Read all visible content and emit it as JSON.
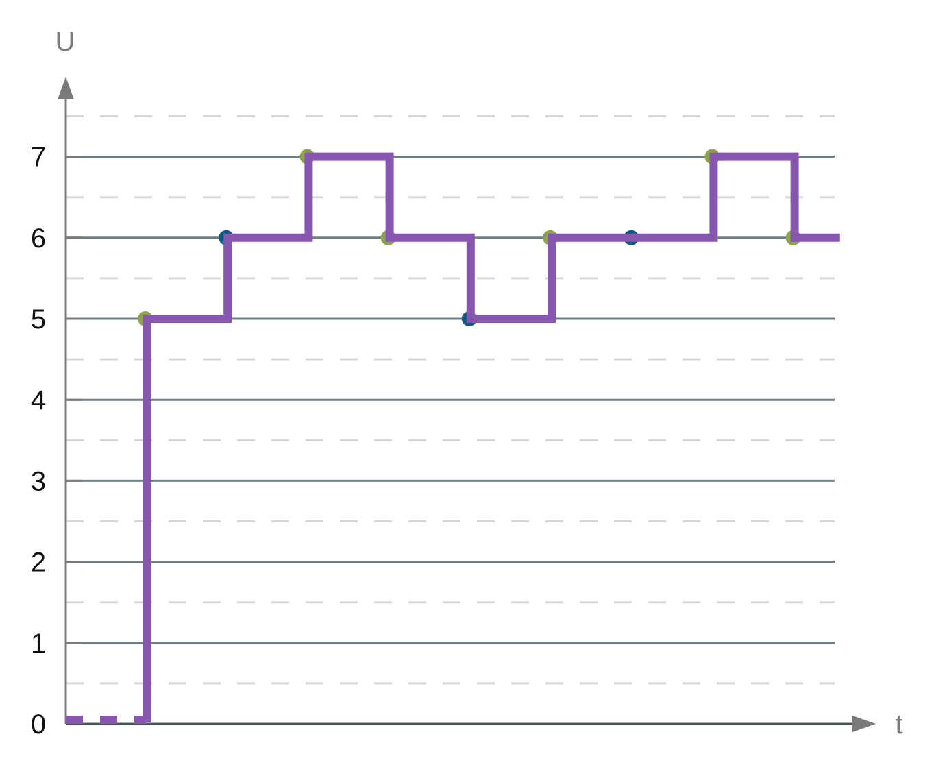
{
  "chart_data": {
    "type": "line",
    "step": true,
    "xlabel": "t",
    "ylabel": "U",
    "ylim": [
      0,
      7.5
    ],
    "yticks": [
      "0",
      "1",
      "2",
      "3",
      "4",
      "5",
      "6",
      "7"
    ],
    "grid": {
      "major": true,
      "minor_dashed": true
    },
    "series": [
      {
        "signal_steps": [
          {
            "t": 0,
            "value": 0
          },
          {
            "t": 1,
            "value": 5
          },
          {
            "t": 2,
            "value": 6
          },
          {
            "t": 3,
            "value": 7
          },
          {
            "t": 4,
            "value": 6
          },
          {
            "t": 5,
            "value": 5
          },
          {
            "t": 6,
            "value": 6
          },
          {
            "t": 7,
            "value": 6
          },
          {
            "t": 8,
            "value": 7
          },
          {
            "t": 9,
            "value": 6
          },
          {
            "t": 9.56,
            "value": 6
          }
        ],
        "initial_segment_style": "dashed",
        "color": "#8757b0"
      }
    ],
    "sample_points": [
      {
        "t": 1,
        "value": 5,
        "color": "#8da44a"
      },
      {
        "t": 2,
        "value": 6,
        "color": "#0e5a80"
      },
      {
        "t": 3,
        "value": 7,
        "color": "#8da44a"
      },
      {
        "t": 4,
        "value": 6,
        "color": "#8da44a"
      },
      {
        "t": 5,
        "value": 5,
        "color": "#0e5a80"
      },
      {
        "t": 6,
        "value": 6,
        "color": "#8da44a"
      },
      {
        "t": 7,
        "value": 6,
        "color": "#0e5a80"
      },
      {
        "t": 8,
        "value": 7,
        "color": "#8da44a"
      },
      {
        "t": 9,
        "value": 6,
        "color": "#8da44a"
      }
    ],
    "colors": {
      "major_grid": "#6d7d86",
      "minor_grid": "#d6d6d6",
      "axis": "#7a7a7a",
      "line": "#8757b0"
    }
  }
}
